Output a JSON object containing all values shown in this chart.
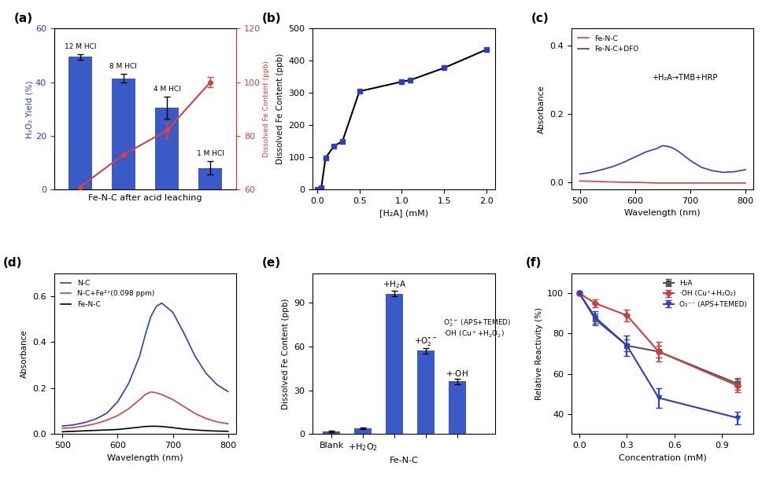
{
  "panel_a": {
    "bar_categories": [
      "12 M HCl",
      "8 M HCl",
      "4 M HCl",
      "1 M HCl"
    ],
    "bar_values": [
      49.5,
      41.5,
      30.5,
      8.0
    ],
    "bar_errors": [
      1.0,
      1.5,
      4.0,
      2.5
    ],
    "bar_color": "#3a5bc7",
    "line_values": [
      61,
      73,
      82,
      100
    ],
    "line_color": "#d94040",
    "line_errors": [
      0,
      0,
      3,
      2
    ],
    "ylabel_left": "H₂O₂ Yield (%)",
    "ylabel_right": "Dissolved Fe Content (ppb)",
    "xlabel": "Fe-N-C after acid leaching",
    "ylim_left": [
      0,
      60
    ],
    "ylim_right": [
      60,
      120
    ],
    "yticks_left": [
      0,
      20,
      40,
      60
    ],
    "yticks_right": [
      60,
      80,
      100,
      120
    ]
  },
  "panel_b": {
    "x": [
      0.0,
      0.05,
      0.1,
      0.2,
      0.3,
      0.5,
      1.0,
      1.1,
      1.5,
      2.0
    ],
    "y": [
      0,
      5,
      98,
      135,
      150,
      305,
      335,
      340,
      378,
      435
    ],
    "color": "#000000",
    "marker_color": "#2a3ec8",
    "xlabel": "[H₂A] (mM)",
    "ylabel": "Dissolved Fe Content (ppb)",
    "ylim": [
      0,
      500
    ],
    "xlim": [
      -0.05,
      2.1
    ],
    "yticks": [
      0,
      100,
      200,
      300,
      400,
      500
    ],
    "xticks": [
      0.0,
      0.5,
      1.0,
      1.5,
      2.0
    ]
  },
  "panel_c": {
    "wavelength": [
      500,
      520,
      540,
      560,
      580,
      600,
      620,
      640,
      650,
      660,
      670,
      680,
      700,
      720,
      740,
      760,
      780,
      800
    ],
    "fe_nc": [
      0.005,
      0.004,
      0.003,
      0.002,
      0.001,
      0.001,
      0.0,
      -0.001,
      -0.001,
      -0.001,
      -0.001,
      -0.001,
      -0.001,
      -0.001,
      -0.001,
      -0.001,
      -0.001,
      -0.001
    ],
    "fe_nc_dfo": [
      0.025,
      0.03,
      0.038,
      0.047,
      0.06,
      0.075,
      0.09,
      0.1,
      0.108,
      0.106,
      0.1,
      0.09,
      0.065,
      0.045,
      0.035,
      0.03,
      0.032,
      0.038
    ],
    "fe_nc_color": "#d94040",
    "fe_nc_dfo_color": "#2a3ec8",
    "annotation": "+H₂A→TMB+HRP",
    "xlabel": "Wavelength (nm)",
    "ylabel": "Absorbance",
    "ylim": [
      -0.02,
      0.45
    ],
    "yticks": [
      0.0,
      0.2,
      0.4
    ],
    "xticks": [
      500,
      600,
      700,
      800
    ]
  },
  "panel_d": {
    "wavelength": [
      500,
      520,
      540,
      560,
      580,
      600,
      620,
      640,
      650,
      660,
      670,
      680,
      700,
      720,
      740,
      760,
      780,
      800
    ],
    "nc": [
      0.035,
      0.04,
      0.05,
      0.065,
      0.09,
      0.14,
      0.22,
      0.34,
      0.43,
      0.51,
      0.555,
      0.57,
      0.53,
      0.44,
      0.34,
      0.265,
      0.215,
      0.185
    ],
    "nc_fe2": [
      0.025,
      0.028,
      0.035,
      0.045,
      0.06,
      0.08,
      0.11,
      0.15,
      0.172,
      0.183,
      0.18,
      0.172,
      0.15,
      0.12,
      0.09,
      0.068,
      0.053,
      0.045
    ],
    "fe_nc": [
      0.01,
      0.012,
      0.014,
      0.016,
      0.018,
      0.02,
      0.025,
      0.03,
      0.033,
      0.034,
      0.034,
      0.033,
      0.028,
      0.022,
      0.018,
      0.015,
      0.013,
      0.012
    ],
    "nc_color": "#2a3ec8",
    "nc_fe2_color": "#d94040",
    "fe_nc_color": "#000000",
    "xlabel": "Wavelength (nm)",
    "ylabel": "Absorbance",
    "ylim": [
      0,
      0.7
    ],
    "yticks": [
      0.0,
      0.2,
      0.4,
      0.6
    ],
    "xticks": [
      500,
      600,
      700,
      800
    ],
    "legend": [
      "N-C",
      "N-C+Fe²⁺(0.098 ppm)",
      "Fe-N-C"
    ]
  },
  "panel_e": {
    "categories": [
      "Blank",
      "+H₂O₂",
      "+H₂A",
      "+O₂⁻⁻",
      "+·OH"
    ],
    "values": [
      2,
      4,
      96,
      57,
      36
    ],
    "errors": [
      0.5,
      0.5,
      2.0,
      2.0,
      2.0
    ],
    "bar_color": "#3a5bc7",
    "xlabel": "Fe-N-C",
    "ylabel": "Dissolved Fe Content (ppb)",
    "ylim": [
      0,
      110
    ],
    "yticks": [
      0,
      30,
      60,
      90
    ],
    "xtick_labels": [
      "Blank",
      "+H₂O₂",
      "",
      "",
      ""
    ]
  },
  "panel_f": {
    "x": [
      0.0,
      0.1,
      0.3,
      0.5,
      1.0
    ],
    "h2a": [
      100,
      87,
      74,
      71,
      55
    ],
    "oh": [
      100,
      95,
      89,
      71,
      54
    ],
    "o2": [
      100,
      88,
      74,
      48,
      38
    ],
    "h2a_errors": [
      0,
      3,
      3,
      3,
      3
    ],
    "oh_errors": [
      0,
      2,
      3,
      5,
      3
    ],
    "o2_errors": [
      0,
      3,
      5,
      5,
      3
    ],
    "h2a_color": "#555555",
    "oh_color": "#c94040",
    "o2_color": "#2a3ec8",
    "xlabel": "Concentration (mM)",
    "ylabel": "Relative Reactivity (%)",
    "ylim": [
      30,
      110
    ],
    "yticks": [
      40,
      60,
      80,
      100
    ],
    "xticks": [
      0.0,
      0.3,
      0.6,
      0.9
    ],
    "legend": [
      "H₂A",
      "·OH (Cu⁺+H₂O₂)",
      "O₂⁻⁻ (APS+TEMED)"
    ]
  }
}
